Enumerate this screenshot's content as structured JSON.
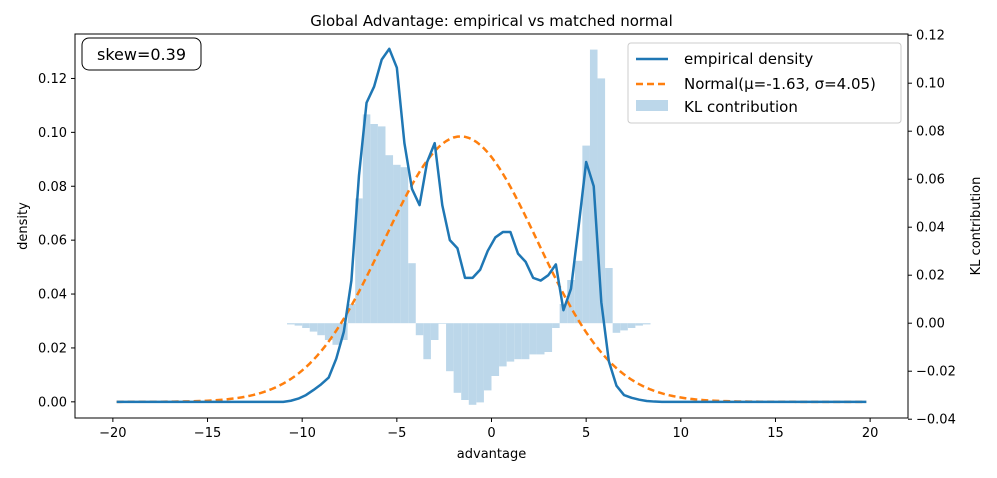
{
  "chart_data": {
    "type": "line",
    "title": "Global Advantage: empirical vs matched normal",
    "xlabel": "advantage",
    "ylabel": "density",
    "ylabel_right": "KL contribution",
    "xlim": [
      -22,
      22
    ],
    "ylim": [
      -0.006,
      0.1365
    ],
    "ylim_right": [
      -0.0395,
      0.1205
    ],
    "xticks": [
      -20,
      -15,
      -10,
      -5,
      0,
      5,
      10,
      15,
      20
    ],
    "xtick_labels": [
      "−20",
      "−15",
      "−10",
      "−5",
      "0",
      "5",
      "10",
      "15",
      "20"
    ],
    "yticks": [
      0.0,
      0.02,
      0.04,
      0.06,
      0.08,
      0.1,
      0.12
    ],
    "ytick_labels": [
      "0.00",
      "0.02",
      "0.04",
      "0.06",
      "0.08",
      "0.10",
      "0.12"
    ],
    "yticks_right": [
      -0.04,
      -0.02,
      0.0,
      0.02,
      0.04,
      0.06,
      0.08,
      0.1,
      0.12
    ],
    "ytick_labels_right": [
      "−0.04",
      "−0.02",
      "0.00",
      "0.02",
      "0.04",
      "0.06",
      "0.08",
      "0.10",
      "0.12"
    ],
    "annotation": "skew=0.39",
    "legend_position": "upper right",
    "colors": {
      "empirical": "#1f77b4",
      "normal": "#ff7f0e",
      "kl": "#bcd7ea"
    },
    "series": [
      {
        "name": "empirical density",
        "kind": "line",
        "x": [
          -19.8,
          -11,
          -10.6,
          -10.2,
          -9.8,
          -9.4,
          -9.0,
          -8.6,
          -8.2,
          -7.8,
          -7.4,
          -7.0,
          -6.6,
          -6.2,
          -5.8,
          -5.4,
          -5.0,
          -4.6,
          -4.2,
          -3.8,
          -3.4,
          -3.0,
          -2.6,
          -2.2,
          -1.8,
          -1.4,
          -1.0,
          -0.6,
          -0.2,
          0.2,
          0.6,
          1.0,
          1.4,
          1.8,
          2.2,
          2.6,
          3.0,
          3.4,
          3.8,
          4.2,
          4.6,
          5.0,
          5.4,
          5.8,
          6.2,
          6.6,
          7.0,
          7.4,
          7.8,
          8.2,
          8.6,
          9.0,
          19.8
        ],
        "values": [
          0.0,
          0.0,
          0.0004,
          0.0012,
          0.0025,
          0.0044,
          0.0065,
          0.009,
          0.016,
          0.026,
          0.045,
          0.084,
          0.111,
          0.117,
          0.127,
          0.131,
          0.124,
          0.096,
          0.079,
          0.073,
          0.089,
          0.096,
          0.073,
          0.06,
          0.057,
          0.046,
          0.046,
          0.049,
          0.056,
          0.061,
          0.063,
          0.063,
          0.055,
          0.052,
          0.046,
          0.045,
          0.047,
          0.051,
          0.034,
          0.042,
          0.065,
          0.089,
          0.08,
          0.037,
          0.015,
          0.006,
          0.0025,
          0.0015,
          0.0008,
          0.0003,
          0.0001,
          0.0,
          0.0
        ]
      },
      {
        "name": "Normal(μ=-1.63, σ=4.05)",
        "kind": "dashed-line",
        "mu": -1.63,
        "sigma": 4.05,
        "x_range": [
          -19.8,
          19.8
        ]
      },
      {
        "name": "KL contribution",
        "kind": "bar",
        "axis": "right",
        "bin_width": 0.4,
        "x": [
          -10.6,
          -10.2,
          -9.8,
          -9.4,
          -9.0,
          -8.6,
          -8.2,
          -7.8,
          -7.4,
          -7.0,
          -6.6,
          -6.2,
          -5.8,
          -5.4,
          -5.0,
          -4.6,
          -4.2,
          -3.8,
          -3.4,
          -3.0,
          -2.6,
          -2.2,
          -1.8,
          -1.4,
          -1.0,
          -0.6,
          -0.2,
          0.2,
          0.6,
          1.0,
          1.4,
          1.8,
          2.2,
          2.6,
          3.0,
          3.4,
          3.8,
          4.2,
          4.6,
          5.0,
          5.4,
          5.8,
          6.2,
          6.6,
          7.0,
          7.4,
          7.8,
          8.2
        ],
        "values": [
          -0.0005,
          -0.001,
          -0.002,
          -0.0035,
          -0.005,
          -0.007,
          -0.009,
          -0.007,
          0.008,
          0.052,
          0.087,
          0.083,
          0.082,
          0.07,
          0.066,
          0.065,
          0.025,
          -0.005,
          -0.015,
          -0.007,
          0.0,
          -0.02,
          -0.029,
          -0.032,
          -0.034,
          -0.033,
          -0.028,
          -0.022,
          -0.018,
          -0.016,
          -0.015,
          -0.015,
          -0.013,
          -0.013,
          -0.012,
          -0.002,
          0.008,
          0.018,
          0.026,
          0.074,
          0.114,
          0.102,
          0.023,
          -0.004,
          -0.003,
          -0.002,
          -0.001,
          -0.0005
        ]
      }
    ]
  }
}
